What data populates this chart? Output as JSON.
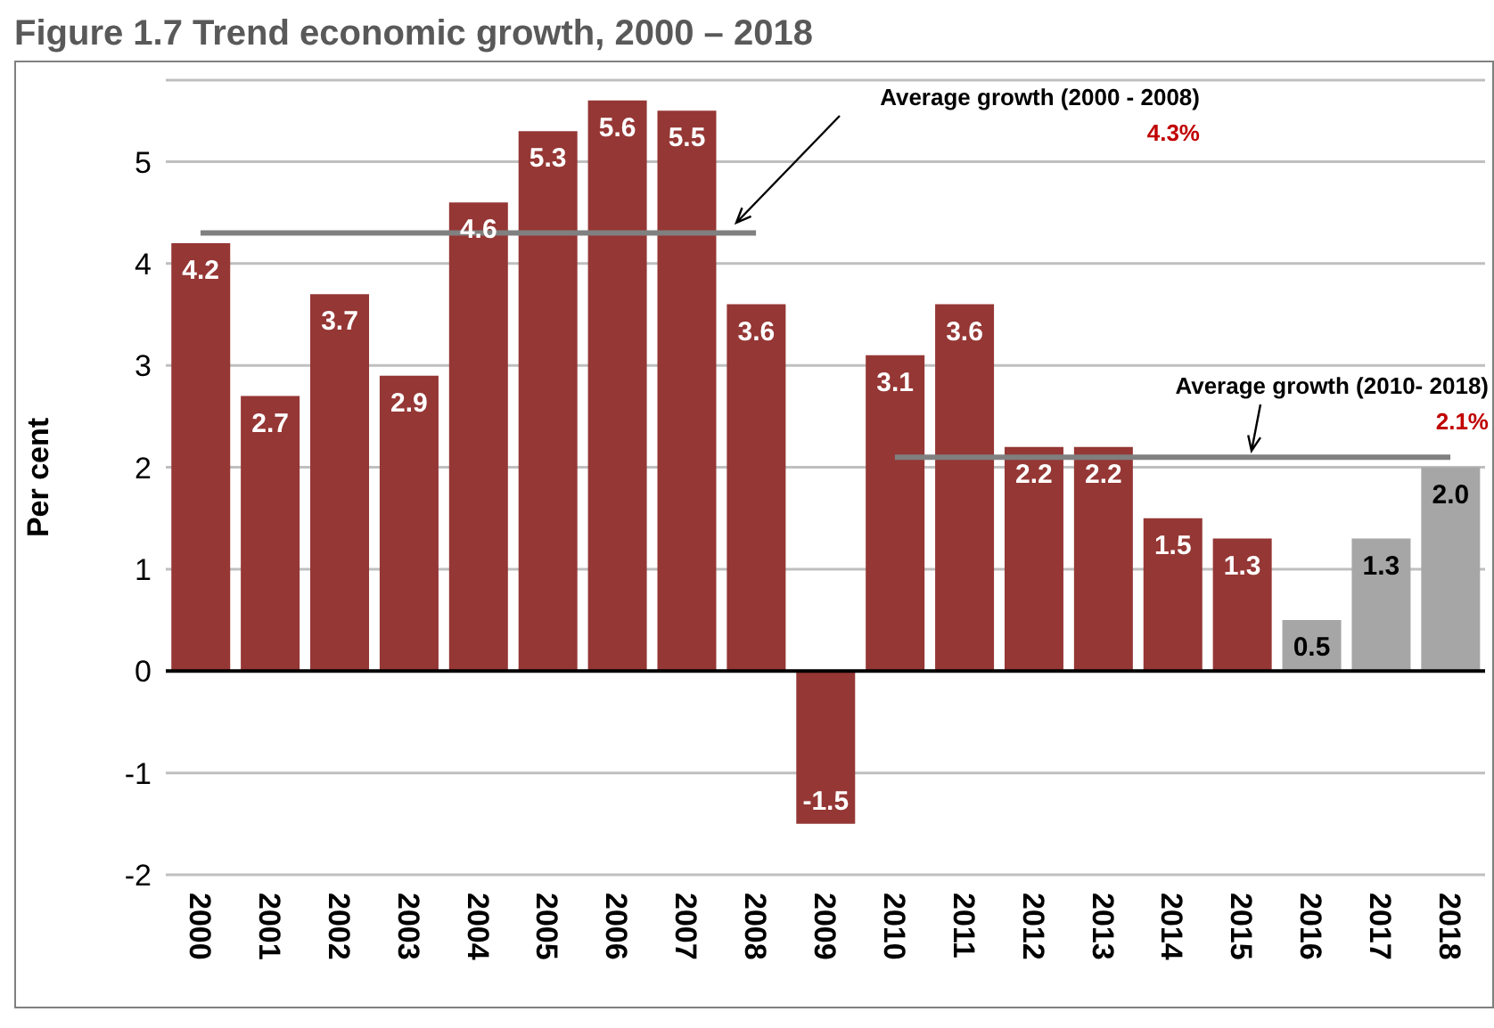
{
  "chart_data": {
    "type": "bar",
    "title": "Figure 1.7 Trend economic growth, 2000 – 2018",
    "ylabel": "Per cent",
    "categories": [
      "2000",
      "2001",
      "2002",
      "2003",
      "2004",
      "2005",
      "2006",
      "2007",
      "2008",
      "2009",
      "2010",
      "2011",
      "2012",
      "2013",
      "2014",
      "2015",
      "2016",
      "2017",
      "2018"
    ],
    "series": [
      {
        "values": [
          4.2,
          2.7,
          3.7,
          2.9,
          4.6,
          5.3,
          5.6,
          5.5,
          3.6,
          -1.5,
          3.1,
          3.6,
          2.2,
          2.2,
          1.5,
          1.3,
          0.5,
          1.3,
          2.0
        ],
        "value_labels": [
          "4.2",
          "2.7",
          "3.7",
          "2.9",
          "4.6",
          "5.3",
          "5.6",
          "5.5",
          "3.6",
          "-1.5",
          "3.1",
          "3.6",
          "2.2",
          "2.2",
          "1.5",
          "1.3",
          "0.5",
          "1.3",
          "2.0"
        ],
        "colors": [
          "#953735",
          "#953735",
          "#953735",
          "#953735",
          "#953735",
          "#953735",
          "#953735",
          "#953735",
          "#953735",
          "#953735",
          "#953735",
          "#953735",
          "#953735",
          "#953735",
          "#953735",
          "#953735",
          "#a6a6a6",
          "#a6a6a6",
          "#a6a6a6"
        ]
      },
      {
        "type": "line",
        "color": "#808080",
        "values": [
          4.3,
          4.3,
          4.3,
          4.3,
          4.3,
          4.3,
          4.3,
          4.3,
          4.3,
          null,
          null,
          null,
          null,
          null,
          null,
          null,
          null,
          null,
          null
        ]
      },
      {
        "type": "line",
        "color": "#808080",
        "values": [
          null,
          null,
          null,
          null,
          null,
          null,
          null,
          null,
          null,
          null,
          2.1,
          2.1,
          2.1,
          2.1,
          2.1,
          2.1,
          2.1,
          2.1,
          2.1
        ]
      }
    ],
    "ylim": [
      -2,
      5.8
    ],
    "yticks": [
      -2,
      -1,
      0,
      1,
      2,
      3,
      4,
      5
    ],
    "grid": "y",
    "legend": false,
    "annotations": [
      "Average growth (2000 - 2008)",
      "4.3%",
      "Average growth (2010- 2018)",
      "2.1%"
    ]
  }
}
